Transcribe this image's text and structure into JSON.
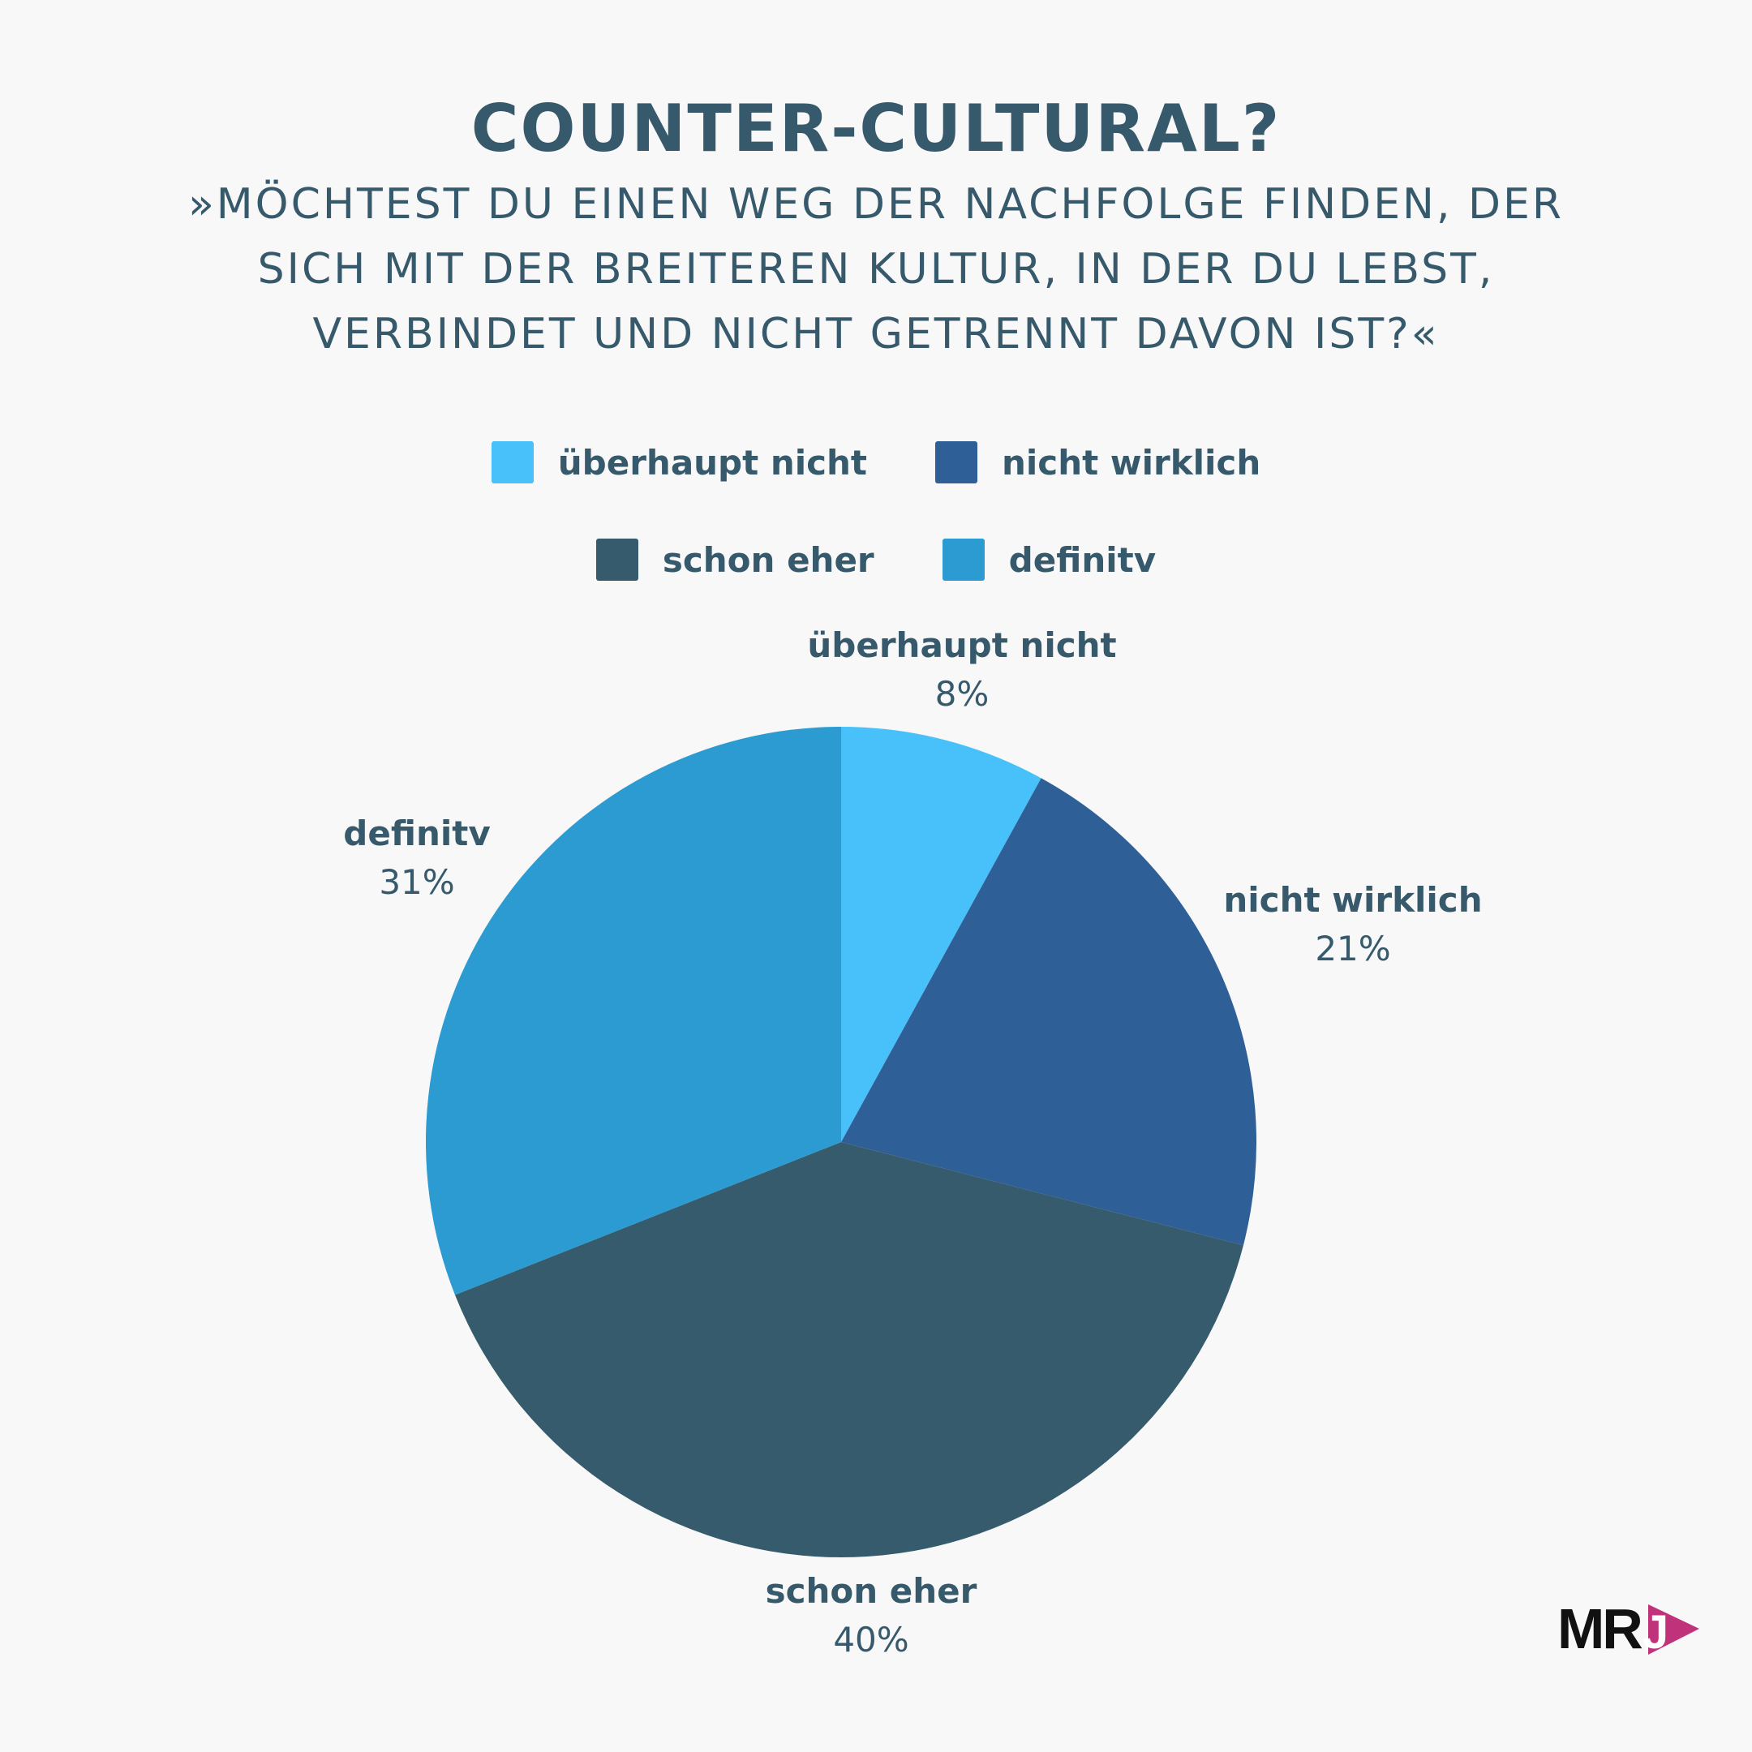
{
  "header": {
    "title": "COUNTER-CULTURAL?",
    "subtitle_lines": [
      "»MÖCHTEST DU EINEN WEG DER NACHFOLGE FINDEN, DER",
      "SICH MIT DER BREITEREN KULTUR, IN DER DU LEBST,",
      "VERBINDET UND NICHT GETRENNT DAVON IST?«"
    ]
  },
  "logo": {
    "text": "MR",
    "accent_letter": "J",
    "accent_color": "#c0337a"
  },
  "chart_data": {
    "type": "pie",
    "categories": [
      "überhaupt nicht",
      "nicht wirklich",
      "schon eher",
      "definitv"
    ],
    "values": [
      8,
      21,
      40,
      31
    ],
    "value_labels": [
      "8%",
      "21%",
      "40%",
      "31%"
    ],
    "colors": [
      "#48c1fb",
      "#2f5f97",
      "#365b6d",
      "#2b9bd2"
    ],
    "legend_position": "top",
    "legend_rows": [
      [
        0,
        1
      ],
      [
        2,
        3
      ]
    ]
  }
}
